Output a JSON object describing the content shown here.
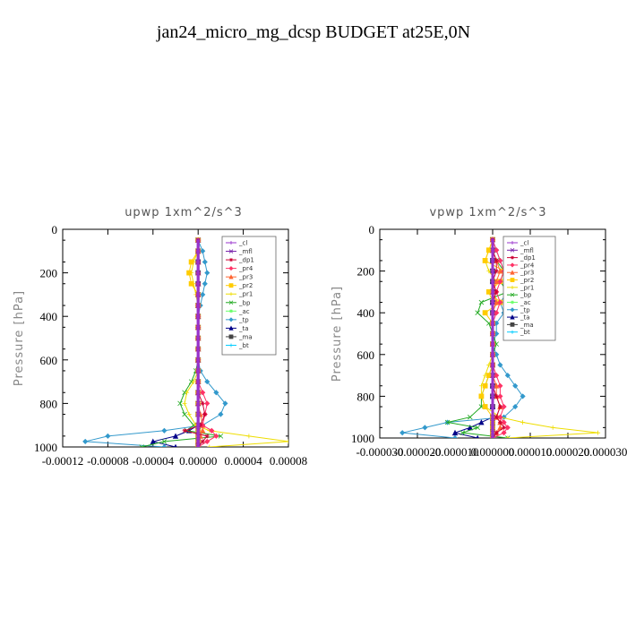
{
  "title": "jan24_micro_mg_dcsp  BUDGET at25E,0N",
  "chart_data": [
    {
      "type": "line",
      "title": "upwp  1xm^2/s^3",
      "xlabel": "",
      "ylabel": "Pressure [hPa]",
      "xlim": [
        -0.00012,
        8e-05
      ],
      "ylim": [
        1000,
        0
      ],
      "x_ticks": [
        "-0.00012",
        "-0.00008",
        "-0.00004",
        "0.00000",
        "0.00004",
        "0.00008"
      ],
      "y_ticks": [
        "0",
        "200",
        "400",
        "600",
        "800",
        "1000"
      ],
      "legend_position": "top-right",
      "y": [
        50,
        100,
        150,
        200,
        250,
        300,
        350,
        400,
        450,
        500,
        550,
        600,
        650,
        700,
        750,
        800,
        850,
        900,
        925,
        950,
        975,
        1000
      ],
      "series": [
        {
          "name": "_cl",
          "color": "#9933cc",
          "values": [
            0,
            0,
            0,
            0,
            0,
            0,
            0,
            0,
            0,
            0,
            0,
            0,
            0,
            0,
            0,
            0,
            0,
            0,
            0,
            0,
            0,
            0
          ]
        },
        {
          "name": "_mfl",
          "color": "#7722aa",
          "values": [
            0,
            0,
            0,
            0,
            0,
            0,
            0,
            0,
            0,
            0,
            0,
            0,
            0,
            0,
            0,
            0,
            0,
            0,
            0,
            0,
            0,
            0
          ]
        },
        {
          "name": "_dp1",
          "color": "#cc0033",
          "values": [
            0,
            0,
            0,
            0,
            0,
            0,
            0,
            0,
            0,
            0,
            0,
            0,
            0,
            0,
            0,
            4e-06,
            6e-06,
            2e-06,
            -1.2e-05,
            8e-06,
            4e-06,
            0
          ]
        },
        {
          "name": "_pr4",
          "color": "#ff3366",
          "values": [
            0,
            0,
            0,
            0,
            0,
            0,
            0,
            0,
            0,
            0,
            0,
            0,
            0,
            0,
            4e-06,
            8e-06,
            6e-06,
            4e-06,
            1.2e-05,
            1.6e-05,
            8e-06,
            0
          ]
        },
        {
          "name": "_pr3",
          "color": "#ff6633",
          "values": [
            0,
            0,
            0,
            0,
            0,
            0,
            0,
            0,
            0,
            0,
            0,
            0,
            0,
            0,
            0,
            0,
            2e-06,
            4e-06,
            4e-06,
            2e-06,
            0,
            0
          ]
        },
        {
          "name": "_pr2",
          "color": "#ffcc00",
          "values": [
            0,
            0,
            -6e-06,
            -8e-06,
            -6e-06,
            0,
            0,
            0,
            0,
            0,
            0,
            0,
            0,
            0,
            0,
            0,
            0,
            0,
            0,
            0,
            0,
            0
          ]
        },
        {
          "name": "_pr1",
          "color": "#eedd00",
          "values": [
            0,
            0,
            -4e-06,
            -6e-06,
            -4e-06,
            -2e-06,
            0,
            0,
            0,
            0,
            0,
            0,
            0,
            -4e-06,
            -1e-05,
            -1.2e-05,
            -8e-06,
            -2e-06,
            1e-05,
            4.5e-05,
            8e-05,
            1e-05
          ]
        },
        {
          "name": "_bp",
          "color": "#22aa22",
          "values": [
            0,
            0,
            0,
            0,
            0,
            0,
            0,
            0,
            0,
            0,
            0,
            0,
            -2e-06,
            -6e-06,
            -1.2e-05,
            -1.6e-05,
            -1.2e-05,
            -4e-06,
            -1e-05,
            2e-05,
            -3e-05,
            -5e-05
          ]
        },
        {
          "name": "_ac",
          "color": "#66ff66",
          "values": [
            0,
            0,
            0,
            0,
            0,
            0,
            0,
            0,
            0,
            0,
            0,
            0,
            0,
            0,
            0,
            0,
            0,
            0,
            0,
            0,
            0,
            0
          ]
        },
        {
          "name": "_tp",
          "color": "#3399cc",
          "values": [
            0,
            4e-06,
            6e-06,
            8e-06,
            6e-06,
            4e-06,
            2e-06,
            0,
            0,
            0,
            0,
            0,
            2e-06,
            8e-06,
            1.6e-05,
            2.4e-05,
            2e-05,
            4e-06,
            -3e-05,
            -8e-05,
            -0.0001,
            -3e-05
          ]
        },
        {
          "name": "_ta",
          "color": "#000088",
          "values": [
            0,
            0,
            0,
            0,
            0,
            0,
            0,
            0,
            0,
            0,
            0,
            0,
            0,
            0,
            0,
            0,
            0,
            0,
            -8e-06,
            -2e-05,
            -4e-05,
            -2e-05
          ]
        },
        {
          "name": "_ma",
          "color": "#444444",
          "values": [
            0,
            0,
            0,
            0,
            0,
            0,
            0,
            0,
            0,
            0,
            0,
            0,
            0,
            0,
            0,
            0,
            0,
            0,
            0,
            0,
            0,
            0
          ]
        },
        {
          "name": "_bt",
          "color": "#00ccff",
          "values": [
            0,
            0,
            0,
            0,
            0,
            0,
            0,
            0,
            0,
            0,
            0,
            0,
            0,
            0,
            0,
            0,
            0,
            0,
            0,
            0,
            0,
            0
          ]
        }
      ]
    },
    {
      "type": "line",
      "title": "vpwp  1xm^2/s^3",
      "xlabel": "",
      "ylabel": "Pressure [hPa]",
      "xlim": [
        -3e-05,
        3e-05
      ],
      "ylim": [
        1000,
        0
      ],
      "x_ticks": [
        "-0.000030",
        "-0.000020",
        "-0.000010",
        "0.000000",
        "0.000010",
        "0.000020",
        "0.000030"
      ],
      "y_ticks": [
        "0",
        "200",
        "400",
        "600",
        "800",
        "1000"
      ],
      "legend_position": "top-right",
      "y": [
        50,
        100,
        150,
        200,
        250,
        300,
        350,
        400,
        450,
        500,
        550,
        600,
        650,
        700,
        750,
        800,
        850,
        900,
        925,
        950,
        975,
        1000
      ],
      "series": [
        {
          "name": "_cl",
          "color": "#9933cc",
          "values": [
            0,
            0,
            0,
            0,
            0,
            0,
            0,
            0,
            0,
            0,
            0,
            0,
            0,
            0,
            0,
            0,
            0,
            0,
            0,
            0,
            0,
            0
          ]
        },
        {
          "name": "_mfl",
          "color": "#7722aa",
          "values": [
            0,
            0,
            0,
            0,
            0,
            0,
            0,
            0,
            0,
            0,
            0,
            0,
            0,
            0,
            0,
            0,
            0,
            0,
            0,
            0,
            0,
            0
          ]
        },
        {
          "name": "_dp1",
          "color": "#cc0033",
          "values": [
            0,
            0,
            1e-06,
            1e-06,
            0,
            1e-06,
            0,
            0,
            0,
            0,
            0,
            0,
            0,
            0,
            0,
            1e-06,
            2e-06,
            1e-06,
            2e-06,
            3e-06,
            1e-06,
            0
          ]
        },
        {
          "name": "_pr4",
          "color": "#ff3366",
          "values": [
            0,
            1e-06,
            2e-06,
            3e-06,
            2e-06,
            1e-06,
            2e-06,
            1e-06,
            0,
            0,
            0,
            0,
            0,
            1e-06,
            2e-06,
            2e-06,
            3e-06,
            2e-06,
            3e-06,
            4e-06,
            3e-06,
            0
          ]
        },
        {
          "name": "_pr3",
          "color": "#ff6633",
          "values": [
            0,
            0,
            1e-06,
            2e-06,
            1e-06,
            0,
            1e-06,
            0,
            0,
            0,
            0,
            0,
            0,
            0,
            1e-06,
            1e-06,
            2e-06,
            1e-06,
            2e-06,
            2e-06,
            1e-06,
            0
          ]
        },
        {
          "name": "_pr2",
          "color": "#ffcc00",
          "values": [
            0,
            -1e-06,
            -2e-06,
            3e-06,
            2e-06,
            -1e-06,
            2e-06,
            -2e-06,
            0,
            0,
            0,
            0,
            0,
            -1e-06,
            -2e-06,
            -3e-06,
            -2e-06,
            0,
            0,
            0,
            0,
            0
          ]
        },
        {
          "name": "_pr1",
          "color": "#eedd00",
          "values": [
            0,
            -1e-06,
            -2e-06,
            -1e-06,
            1e-06,
            -1e-06,
            0,
            0,
            0,
            0,
            0,
            0,
            -1e-06,
            -2e-06,
            -3e-06,
            -3e-06,
            -2e-06,
            2e-06,
            8e-06,
            1.6e-05,
            2.8e-05,
            4e-06
          ]
        },
        {
          "name": "_bp",
          "color": "#22aa22",
          "values": [
            0,
            0,
            1e-06,
            3e-06,
            2e-06,
            4e-06,
            -3e-06,
            -4e-06,
            -1e-06,
            0,
            1e-06,
            0,
            0,
            -1e-06,
            -2e-06,
            -3e-06,
            -3e-06,
            -6e-06,
            -1.2e-05,
            -4e-06,
            -8e-06,
            4e-06
          ]
        },
        {
          "name": "_ac",
          "color": "#66ff66",
          "values": [
            0,
            0,
            0,
            0,
            0,
            0,
            0,
            0,
            0,
            0,
            0,
            0,
            0,
            0,
            0,
            0,
            0,
            0,
            0,
            0,
            0,
            0
          ]
        },
        {
          "name": "_tp",
          "color": "#3399cc",
          "values": [
            0,
            1e-06,
            2e-06,
            3e-06,
            2e-06,
            4e-06,
            2e-06,
            3e-06,
            1e-06,
            1e-06,
            0,
            1e-06,
            2e-06,
            4e-06,
            6e-06,
            8e-06,
            6e-06,
            3e-06,
            -1.2e-05,
            -1.8e-05,
            -2.4e-05,
            -1e-05
          ]
        },
        {
          "name": "_ta",
          "color": "#000088",
          "values": [
            0,
            0,
            0,
            0,
            0,
            0,
            0,
            0,
            0,
            0,
            0,
            0,
            0,
            0,
            0,
            0,
            0,
            0,
            -3e-06,
            -6e-06,
            -1e-05,
            -4e-06
          ]
        },
        {
          "name": "_ma",
          "color": "#444444",
          "values": [
            0,
            0,
            0,
            0,
            0,
            0,
            0,
            0,
            0,
            0,
            0,
            0,
            0,
            0,
            0,
            0,
            0,
            0,
            0,
            0,
            0,
            0
          ]
        },
        {
          "name": "_bt",
          "color": "#00ccff",
          "values": [
            0,
            0,
            0,
            0,
            0,
            0,
            0,
            0,
            0,
            0,
            0,
            0,
            0,
            0,
            0,
            0,
            0,
            0,
            0,
            0,
            0,
            0
          ]
        }
      ]
    }
  ]
}
